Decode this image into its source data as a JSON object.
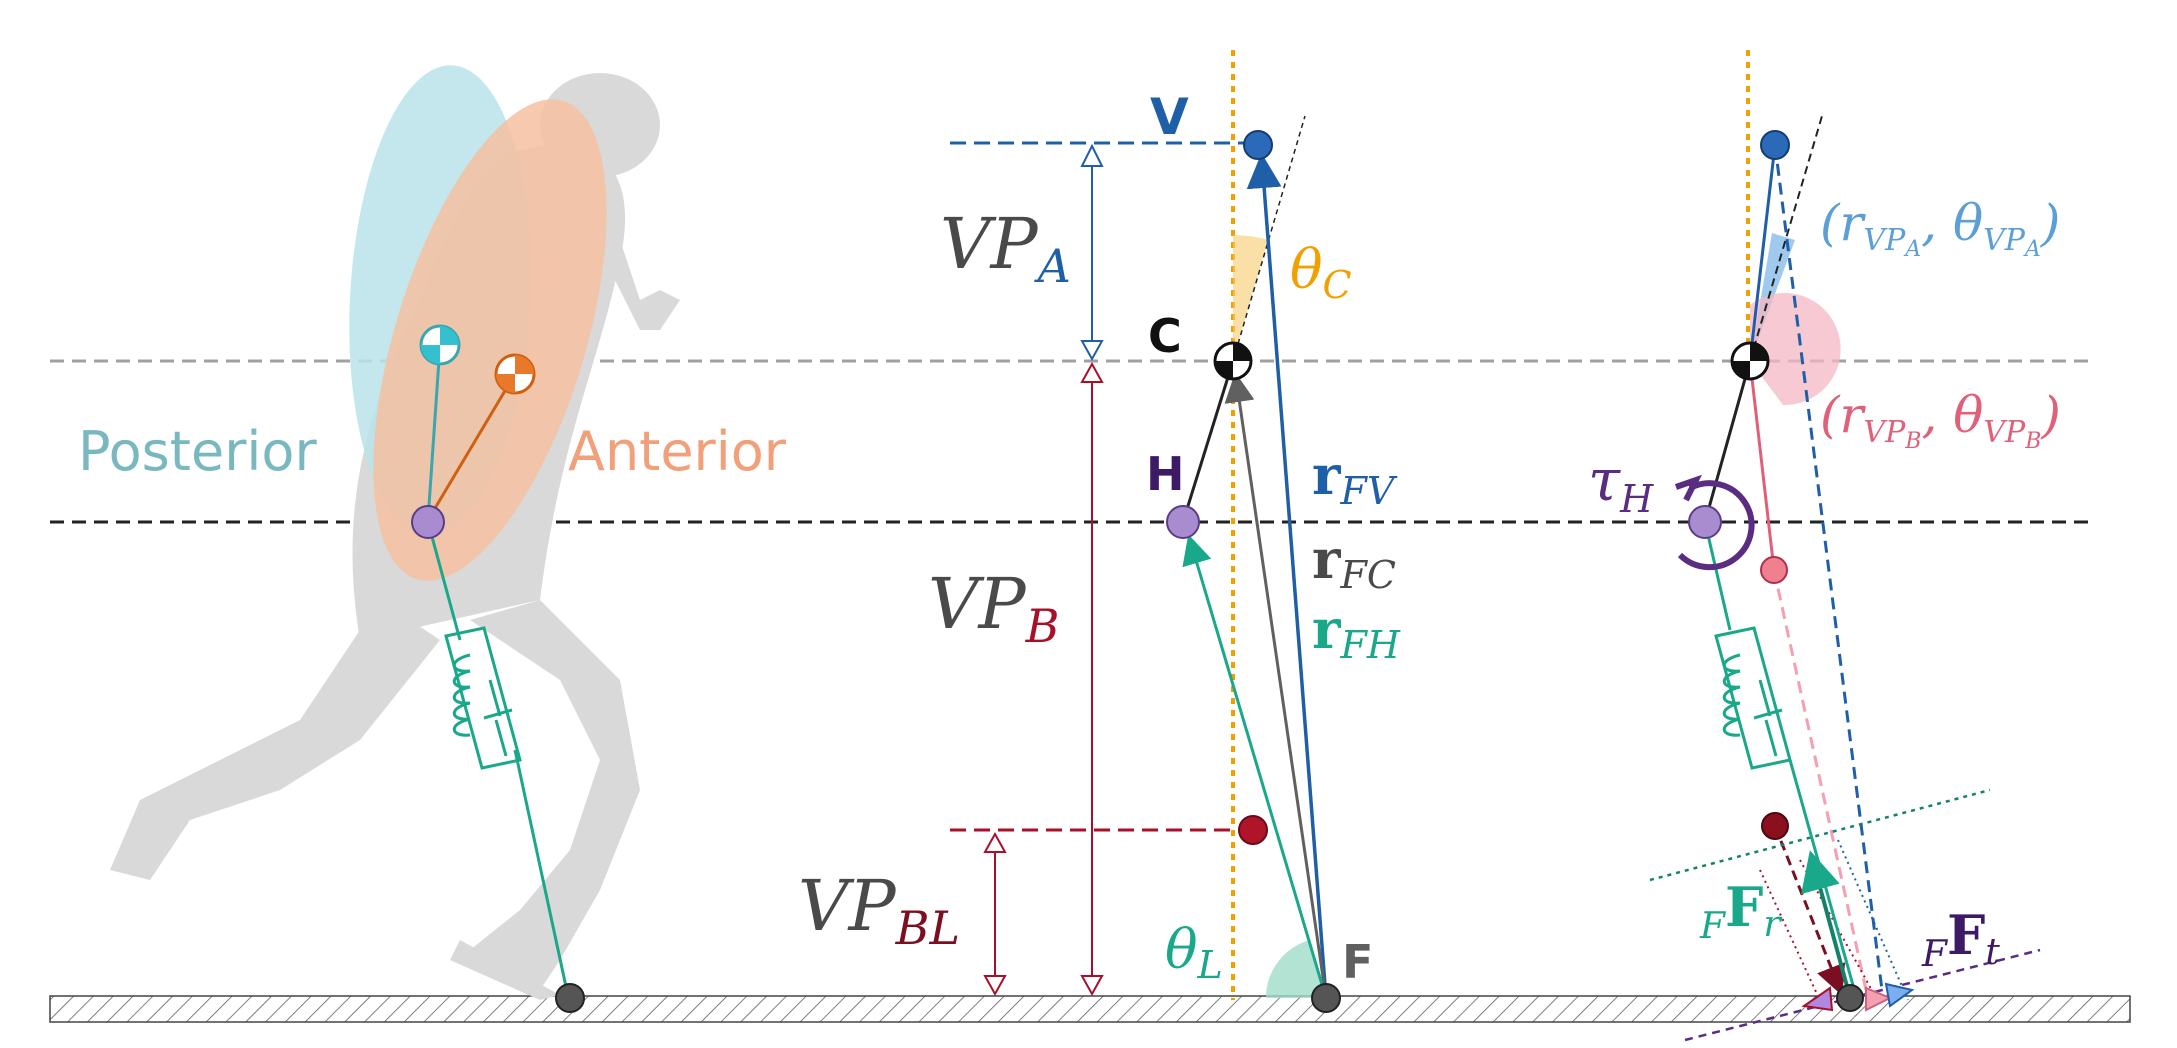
{
  "labels": {
    "posterior": "Posterior",
    "anterior": "Anterior",
    "v": "V",
    "c": "C",
    "h": "H",
    "f": "F",
    "vpa_main": "VP",
    "vpa_sub": "A",
    "vpb_main": "VP",
    "vpb_sub": "B",
    "vpbl_main": "VP",
    "vpbl_sub": "BL",
    "theta_c_main": "θ",
    "theta_c_sub": "C",
    "theta_l_main": "θ",
    "theta_l_sub": "L",
    "rfv_main": "r",
    "rfv_sub": "FV",
    "rfc_main": "r",
    "rfc_sub": "FC",
    "rfh_main": "r",
    "rfh_sub": "FH",
    "tau_main": "τ",
    "tau_sub": "H",
    "vpa_coord_open": "(r",
    "vpa_coord_sub1": "VP",
    "vpa_coord_sub1b": "A",
    "vpa_coord_mid": ", θ",
    "vpa_coord_sub2": "VP",
    "vpa_coord_sub2b": "A",
    "vpa_coord_close": ")",
    "vpb_coord_open": "(r",
    "vpb_coord_sub1": "VP",
    "vpb_coord_sub1b": "B",
    "vpb_coord_mid": ", θ",
    "vpb_coord_sub2": "VP",
    "vpb_coord_sub2b": "B",
    "vpb_coord_close": ")",
    "ffr_pre": "F",
    "ffr_main": "F",
    "ffr_sub": "r",
    "fft_pre": "F",
    "fft_main": "F",
    "fft_sub": "t"
  },
  "colors": {
    "posterior": "#7ab8c0",
    "anterior": "#f2a07a",
    "posterior_ellipse": "#b9e3ea",
    "anterior_ellipse": "#f6bfa0",
    "vp_above": "#1f5fa8",
    "vp_below": "#a8102a",
    "vp_below_low": "#7a0f22",
    "hip": "#a98bd0",
    "leg": "#1aa88a",
    "trunk_line": "#222222",
    "rfc": "#606060",
    "theta_c": "#f0a000",
    "theta_l": "#1aa88a",
    "tau": "#5a2d82",
    "vpa_coord": "#5b9fd6",
    "vpb_coord": "#e0607a",
    "vertical_dotted": "#f0a000",
    "text_dark": "#4a4a4a",
    "h_label": "#3d1a66"
  }
}
